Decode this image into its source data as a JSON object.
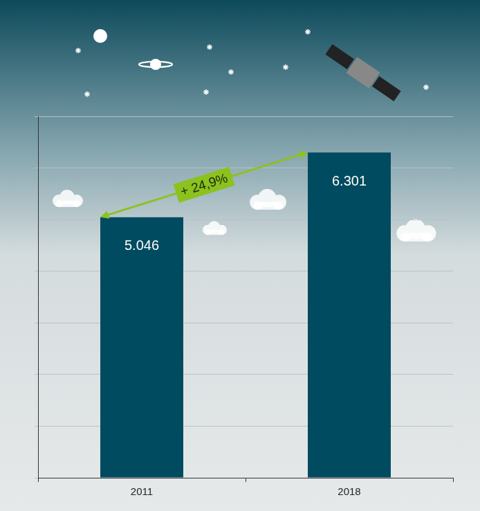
{
  "chart_data": {
    "type": "bar",
    "categories": [
      "2011",
      "2018"
    ],
    "values": [
      5046,
      6301
    ],
    "value_labels": [
      "5.046",
      "6.301"
    ],
    "color": "#004b5f",
    "ylim": [
      0,
      7000
    ],
    "yticks": [
      0,
      1000,
      2000,
      3000,
      4000,
      5000,
      6000,
      7000
    ],
    "grid": true,
    "tick_labels": "x",
    "data_labels": true,
    "annotation": "+ 24,9%"
  }
}
